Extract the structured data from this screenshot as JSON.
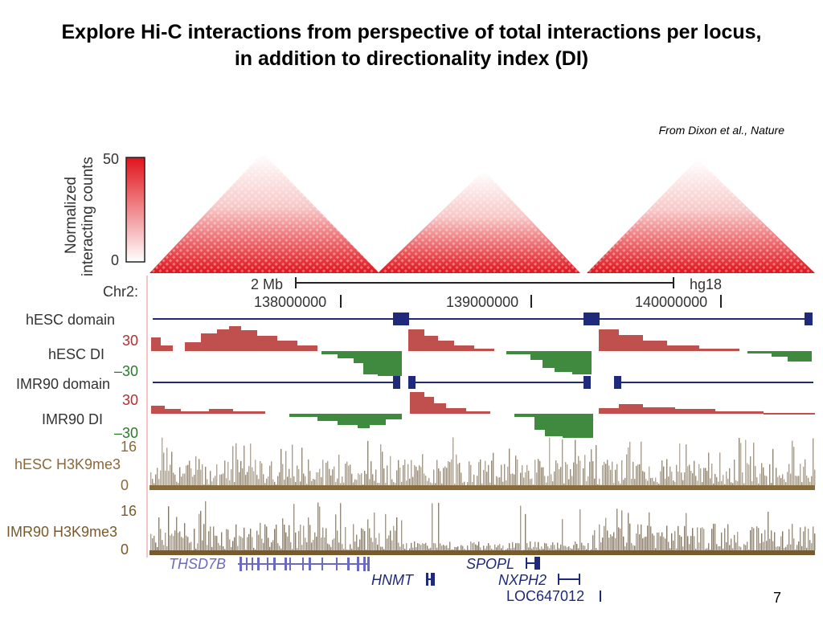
{
  "slide": {
    "title_line1": "Explore Hi-C interactions from perspective of total interactions per locus,",
    "title_line2": "in addition to directionality index (DI)",
    "citation": "From Dixon et al., Nature",
    "page_number": "7"
  },
  "figure": {
    "colorbar": {
      "label_line1": "Normalized",
      "label_line2": "interacting counts",
      "max": "50",
      "min": "0",
      "color_high": "#e0141c",
      "color_low": "#ffffff"
    },
    "chrom": {
      "label": "Chr2:",
      "scale_label": "2 Mb",
      "assembly": "hg18",
      "positions": [
        "138000000",
        "139000000",
        "140000000"
      ]
    },
    "tracks": {
      "hesc_domain": "hESC domain",
      "hesc_di": "hESC DI",
      "hesc_di_max": "30",
      "hesc_di_min": "–30",
      "imr90_domain": "IMR90 domain",
      "imr90_di": "IMR90 DI",
      "imr90_di_max": "30",
      "imr90_di_min": "–30",
      "hesc_h3k9": "hESC H3K9me3",
      "hesc_h3k9_max": "16",
      "hesc_h3k9_min": "0",
      "imr90_h3k9": "IMR90 H3K9me3",
      "imr90_h3k9_max": "16",
      "imr90_h3k9_min": "0"
    },
    "genes": [
      "THSD7B",
      "HNMT",
      "SPOPL",
      "NXPH2",
      "LOC647012"
    ],
    "colors": {
      "domain": "#1f2a7a",
      "di_positive": "#c0504d",
      "di_negative": "#3f8a3f",
      "di_edge": "#cc55cc",
      "hesc_h3k9": "#8a6a3a",
      "imr90_h3k9": "#7a5a2a",
      "hesc_label": "#8a6a3a",
      "di_pos_label": "#b03030",
      "di_neg_label": "#2a7a2a",
      "gene_light": "#6a6ac0",
      "gene_dark": "#1f2a7a"
    }
  }
}
